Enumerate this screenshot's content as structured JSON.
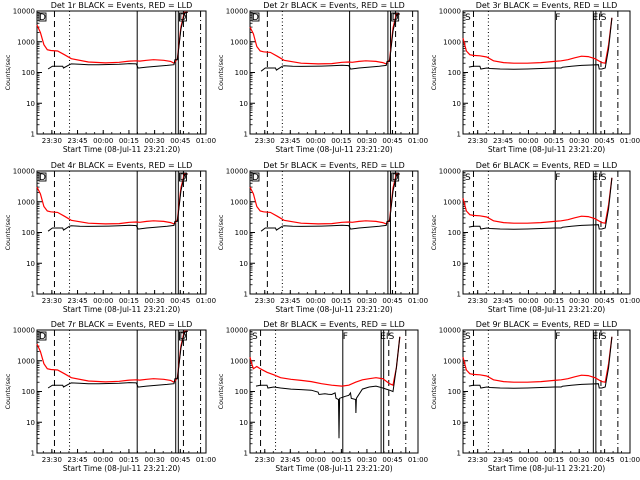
{
  "chart_data": {
    "type": "line",
    "layout": "3x3 grid of panels",
    "shared": {
      "ylabel": "Counts/sec",
      "yscale": "log",
      "ylim": [
        1,
        10000
      ],
      "y_ticks": [
        1,
        10,
        100,
        1000,
        10000
      ],
      "y_tick_labels": [
        "1",
        "10",
        "100",
        "1000",
        "10000"
      ],
      "xlim": [
        "23:21:20",
        "01:00"
      ],
      "x_ticks": [
        "23:30",
        "23:45",
        "00:00",
        "00:15",
        "00:30",
        "00:45",
        "01:00"
      ],
      "x_tick_labels": [
        "23:30",
        "23:45",
        "00:00",
        "00:15",
        "00:30",
        "00:45",
        "01:00"
      ],
      "x_tick_minutes": [
        8.67,
        23.67,
        38.67,
        53.67,
        68.67,
        83.67,
        98.67
      ],
      "xlabel": "Start Time (08-Jul-11 23:21:20)",
      "x_range_minutes": [
        0,
        98.67
      ],
      "series_legend": "BLACK = Events, RED = LLD",
      "series": [
        {
          "name": "Events",
          "color": "#000000"
        },
        {
          "name": "LLD",
          "color": "#ff0000"
        }
      ],
      "vlines": [
        {
          "t": 10.2,
          "style": "dashed"
        },
        {
          "t": 19.0,
          "style": "dotted"
        },
        {
          "t": 58.5,
          "style": "solid"
        },
        {
          "t": 81.0,
          "style": "solid"
        },
        {
          "t": 82.5,
          "style": "solid"
        },
        {
          "t": 85.5,
          "style": "dashed"
        },
        {
          "t": 95.5,
          "style": "dashdot"
        }
      ]
    },
    "panels": [
      {
        "title": "Det 1r BLACK = Events, RED = LLD",
        "markers": [
          "D",
          "D"
        ],
        "vline_shift": 0,
        "events": {
          "t": [
            0,
            6,
            6.5,
            9,
            15,
            15.5,
            19,
            20,
            25,
            30,
            36,
            42,
            48,
            54,
            58,
            59,
            59.5,
            64,
            70,
            76,
            80,
            80.5,
            82,
            84,
            86,
            87,
            88
          ],
          "v": [
            null,
            null,
            130,
            160,
            160,
            140,
            180,
            190,
            185,
            180,
            180,
            182,
            185,
            195,
            190,
            140,
            140,
            150,
            160,
            170,
            180,
            260,
            260,
            2500,
            8000,
            9000,
            9000
          ]
        },
        "lld": {
          "t": [
            0,
            2,
            4,
            6,
            8,
            12,
            16,
            20,
            30,
            40,
            48,
            54,
            58,
            60,
            64,
            68,
            74,
            78,
            80,
            82,
            84,
            86,
            88
          ],
          "v": [
            3500,
            2000,
            800,
            550,
            520,
            500,
            380,
            280,
            220,
            205,
            215,
            235,
            240,
            235,
            250,
            260,
            250,
            230,
            200,
            280,
            3000,
            9000,
            9000
          ]
        }
      },
      {
        "title": "Det 2r BLACK = Events, RED = LLD",
        "markers": [
          "D",
          "D"
        ],
        "vline_shift": 0,
        "events": {
          "t": [
            0,
            6,
            6.5,
            9,
            15,
            15.5,
            19,
            20,
            25,
            30,
            36,
            42,
            48,
            54,
            58,
            59,
            59.5,
            64,
            70,
            76,
            80,
            80.5,
            82,
            84,
            86,
            87,
            88
          ],
          "v": [
            null,
            null,
            110,
            140,
            140,
            120,
            160,
            165,
            160,
            158,
            160,
            162,
            165,
            172,
            168,
            130,
            130,
            140,
            150,
            160,
            170,
            230,
            230,
            2200,
            7000,
            8000,
            8000
          ]
        },
        "lld": {
          "t": [
            0,
            2,
            4,
            6,
            8,
            12,
            16,
            20,
            30,
            40,
            48,
            54,
            58,
            60,
            64,
            68,
            74,
            78,
            80,
            82,
            84,
            86,
            88
          ],
          "v": [
            3000,
            1800,
            700,
            500,
            470,
            450,
            340,
            250,
            200,
            190,
            195,
            215,
            220,
            215,
            230,
            240,
            230,
            210,
            190,
            260,
            2800,
            8000,
            8000
          ]
        }
      },
      {
        "title": "Det 3r BLACK = Events, RED = LLD",
        "markers": [
          "S",
          "F",
          "EIS"
        ],
        "vline_shift": -4,
        "events": {
          "t": [
            0,
            3,
            3.5,
            6,
            10,
            10.5,
            14,
            16,
            22,
            30,
            38,
            46,
            54,
            58,
            59,
            59.5,
            64,
            70,
            76,
            80,
            80.5,
            82,
            84,
            86,
            88
          ],
          "v": [
            null,
            null,
            150,
            160,
            160,
            130,
            140,
            135,
            130,
            128,
            130,
            135,
            140,
            140,
            150,
            150,
            160,
            170,
            175,
            180,
            130,
            130,
            140,
            600,
            6000
          ]
        },
        "lld": {
          "t": [
            0,
            1,
            2,
            4,
            6,
            10,
            14,
            18,
            24,
            30,
            38,
            46,
            54,
            58,
            62,
            66,
            70,
            74,
            78,
            82,
            84,
            86,
            88
          ],
          "v": [
            1300,
            800,
            500,
            380,
            360,
            350,
            320,
            240,
            210,
            200,
            200,
            210,
            230,
            240,
            260,
            300,
            340,
            330,
            280,
            210,
            200,
            800,
            6000
          ]
        }
      },
      {
        "title": "Det 4r BLACK = Events, RED = LLD",
        "markers": [
          "D",
          "D"
        ],
        "vline_shift": 0,
        "events": {
          "t": [
            0,
            6,
            6.5,
            9,
            15,
            15.5,
            19,
            20,
            25,
            30,
            36,
            42,
            48,
            54,
            58,
            59,
            59.5,
            64,
            70,
            76,
            80,
            80.5,
            82,
            84,
            86,
            87,
            88
          ],
          "v": [
            null,
            null,
            110,
            140,
            140,
            120,
            160,
            165,
            160,
            158,
            160,
            162,
            165,
            172,
            168,
            130,
            130,
            140,
            150,
            160,
            170,
            230,
            230,
            2200,
            7000,
            8000,
            8000
          ]
        },
        "lld": {
          "t": [
            0,
            2,
            4,
            6,
            8,
            12,
            16,
            20,
            30,
            40,
            48,
            54,
            58,
            60,
            64,
            68,
            74,
            78,
            80,
            82,
            84,
            86,
            88
          ],
          "v": [
            3000,
            1800,
            700,
            500,
            470,
            450,
            340,
            250,
            200,
            190,
            195,
            215,
            220,
            215,
            230,
            240,
            230,
            210,
            190,
            260,
            2800,
            8000,
            8000
          ]
        }
      },
      {
        "title": "Det 5r BLACK = Events, RED = LLD",
        "markers": [
          "D",
          "D"
        ],
        "vline_shift": 0,
        "events": {
          "t": [
            0,
            6,
            6.5,
            9,
            15,
            15.5,
            19,
            20,
            25,
            30,
            36,
            42,
            48,
            54,
            58,
            59,
            59.5,
            64,
            70,
            76,
            80,
            80.5,
            82,
            84,
            86,
            87,
            88
          ],
          "v": [
            null,
            null,
            110,
            140,
            140,
            120,
            160,
            165,
            160,
            158,
            160,
            162,
            165,
            172,
            168,
            130,
            130,
            140,
            150,
            160,
            170,
            230,
            230,
            2200,
            7000,
            8000,
            8000
          ]
        },
        "lld": {
          "t": [
            0,
            2,
            4,
            6,
            8,
            12,
            16,
            20,
            30,
            40,
            48,
            54,
            58,
            60,
            64,
            68,
            74,
            78,
            80,
            82,
            84,
            86,
            88
          ],
          "v": [
            3000,
            1800,
            700,
            500,
            470,
            450,
            340,
            250,
            200,
            190,
            195,
            215,
            220,
            215,
            230,
            240,
            230,
            210,
            190,
            260,
            2800,
            8000,
            8000
          ]
        }
      },
      {
        "title": "Det 6r BLACK = Events, RED = LLD",
        "markers": [
          "S",
          "F",
          "EIS"
        ],
        "vline_shift": -4,
        "events": {
          "t": [
            0,
            3,
            3.5,
            6,
            10,
            10.5,
            14,
            16,
            22,
            30,
            38,
            46,
            54,
            58,
            59,
            59.5,
            64,
            70,
            76,
            80,
            80.5,
            82,
            84,
            86,
            88
          ],
          "v": [
            null,
            null,
            150,
            160,
            160,
            130,
            140,
            135,
            130,
            128,
            130,
            135,
            140,
            140,
            150,
            150,
            160,
            170,
            175,
            180,
            130,
            130,
            140,
            600,
            6000
          ]
        },
        "lld": {
          "t": [
            0,
            1,
            2,
            4,
            6,
            10,
            14,
            18,
            24,
            30,
            38,
            46,
            54,
            58,
            62,
            66,
            70,
            74,
            78,
            82,
            84,
            86,
            88
          ],
          "v": [
            1300,
            800,
            500,
            380,
            360,
            350,
            320,
            240,
            210,
            200,
            200,
            210,
            230,
            240,
            260,
            300,
            340,
            330,
            280,
            210,
            200,
            800,
            6000
          ]
        }
      },
      {
        "title": "Det 7r BLACK = Events, RED = LLD",
        "markers": [
          "D",
          "D"
        ],
        "vline_shift": 0,
        "events": {
          "t": [
            0,
            6,
            6.5,
            9,
            15,
            15.5,
            19,
            20,
            25,
            30,
            36,
            42,
            48,
            54,
            58,
            59,
            59.5,
            64,
            70,
            76,
            80,
            80.5,
            82,
            84,
            86,
            87,
            88
          ],
          "v": [
            null,
            null,
            130,
            160,
            160,
            140,
            180,
            190,
            185,
            180,
            180,
            182,
            185,
            195,
            190,
            140,
            140,
            150,
            160,
            170,
            180,
            260,
            260,
            2500,
            8000,
            9000,
            9000
          ]
        },
        "lld": {
          "t": [
            0,
            2,
            4,
            6,
            8,
            12,
            16,
            20,
            30,
            40,
            48,
            54,
            58,
            60,
            64,
            68,
            74,
            78,
            80,
            82,
            84,
            86,
            88
          ],
          "v": [
            3500,
            2000,
            800,
            550,
            520,
            500,
            380,
            280,
            220,
            205,
            215,
            235,
            240,
            235,
            250,
            260,
            250,
            230,
            200,
            280,
            3000,
            9000,
            9000
          ]
        }
      },
      {
        "title": "Det 8r BLACK = Events, RED = LLD",
        "markers": [
          "S",
          "F",
          "EIS"
        ],
        "vline_shift": -4,
        "events": {
          "t": [
            0,
            3,
            3.5,
            6,
            10,
            10.5,
            14,
            18,
            24,
            30,
            36,
            40,
            40.5,
            44,
            46,
            48,
            50,
            50.5,
            52,
            52.3,
            52.6,
            56,
            58,
            59,
            59.5,
            62,
            62.2,
            62.5,
            66,
            70,
            74,
            78,
            80,
            82,
            84,
            86,
            88
          ],
          "v": [
            null,
            null,
            150,
            160,
            160,
            130,
            140,
            130,
            120,
            115,
            110,
            95,
            80,
            85,
            82,
            80,
            90,
            60,
            55,
            3,
            60,
            70,
            75,
            90,
            60,
            55,
            20,
            60,
            120,
            140,
            150,
            130,
            120,
            110,
            100,
            600,
            6000
          ]
        },
        "lld": {
          "t": [
            0,
            1,
            2,
            4,
            6,
            10,
            14,
            18,
            24,
            30,
            36,
            42,
            48,
            54,
            58,
            62,
            66,
            70,
            74,
            78,
            82,
            84,
            86,
            88
          ],
          "v": [
            1300,
            800,
            550,
            650,
            550,
            420,
            350,
            280,
            250,
            230,
            210,
            180,
            160,
            150,
            160,
            200,
            240,
            260,
            280,
            260,
            180,
            160,
            600,
            6000
          ]
        }
      },
      {
        "title": "Det 9r BLACK = Events, RED = LLD",
        "markers": [
          "S",
          "F",
          "EIS"
        ],
        "vline_shift": -4,
        "events": {
          "t": [
            0,
            3,
            3.5,
            6,
            10,
            10.5,
            14,
            16,
            22,
            30,
            38,
            46,
            54,
            58,
            59,
            59.5,
            64,
            70,
            76,
            80,
            80.5,
            82,
            84,
            86,
            88
          ],
          "v": [
            null,
            null,
            150,
            160,
            160,
            130,
            140,
            135,
            130,
            128,
            130,
            135,
            140,
            140,
            150,
            150,
            160,
            170,
            175,
            180,
            130,
            130,
            140,
            600,
            6000
          ]
        },
        "lld": {
          "t": [
            0,
            1,
            2,
            4,
            6,
            10,
            14,
            18,
            24,
            30,
            38,
            46,
            54,
            58,
            62,
            66,
            70,
            74,
            78,
            82,
            84,
            86,
            88
          ],
          "v": [
            1300,
            800,
            500,
            380,
            360,
            350,
            320,
            240,
            210,
            200,
            200,
            210,
            230,
            240,
            260,
            300,
            340,
            330,
            280,
            210,
            200,
            800,
            6000
          ]
        }
      }
    ]
  }
}
